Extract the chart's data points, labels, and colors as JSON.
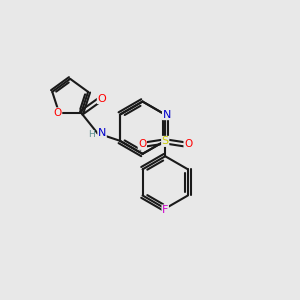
{
  "background_color": "#e8e8e8",
  "bond_color": "#1a1a1a",
  "atom_colors": {
    "O": "#ff0000",
    "N": "#0000cc",
    "S": "#cccc00",
    "F": "#cc00cc",
    "H": "#5a9090",
    "C": "#1a1a1a"
  },
  "figsize": [
    3.0,
    3.0
  ],
  "dpi": 100
}
